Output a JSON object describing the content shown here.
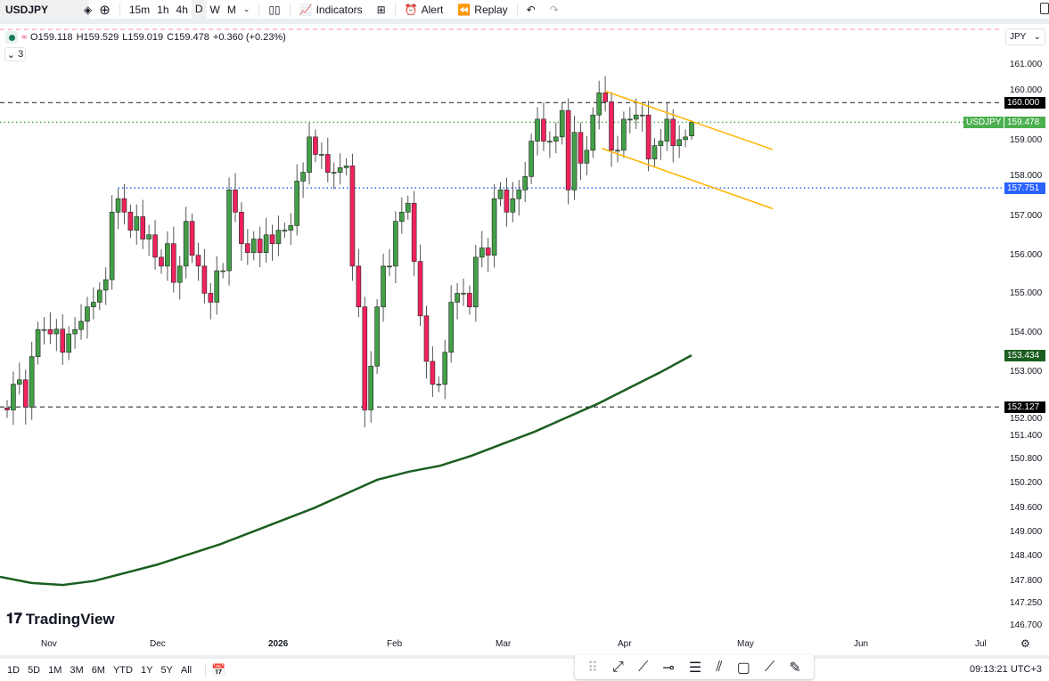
{
  "toolbar": {
    "symbol": "USDJPY",
    "intervals": [
      "15m",
      "1h",
      "4h",
      "D",
      "W",
      "M"
    ],
    "active_interval": "D",
    "indicators": "Indicators",
    "alert": "Alert",
    "replay": "Replay"
  },
  "legend": {
    "open": "O159.118",
    "high": "H159.529",
    "low": "L159.019",
    "close": "C159.478",
    "change": "+0.360 (+0.23%)",
    "collapsed_count": "3"
  },
  "currency": "JPY",
  "colors": {
    "up": "#43a047",
    "down": "#f2225c",
    "ma": "#1b5e20",
    "channel": "#ffb300",
    "support": "#2962ff",
    "last": "#4caf50"
  },
  "chart_data": {
    "type": "candlestick",
    "symbol": "USDJPY",
    "timeframe": "D",
    "scale": "log",
    "ylim": [
      146.6,
      161.5
    ],
    "x_ticks": [
      "Nov",
      "Dec",
      "2026",
      "Feb",
      "Mar",
      "Apr",
      "May",
      "Jun",
      "Jul"
    ],
    "y_ticks": [
      "161.000",
      "160.000",
      "159.000",
      "158.000",
      "157.000",
      "156.000",
      "155.000",
      "154.000",
      "153.000",
      "152.000",
      "151.400",
      "150.800",
      "150.200",
      "149.600",
      "149.000",
      "148.400",
      "147.800",
      "147.250",
      "146.700"
    ],
    "close": [
      152.05,
      152.7,
      152.81,
      152.12,
      153.4,
      154.09,
      154.09,
      153.98,
      154.1,
      153.51,
      153.98,
      154.09,
      154.3,
      154.67,
      154.79,
      155.1,
      155.37,
      157.12,
      157.47,
      157.12,
      156.65,
      157.0,
      156.42,
      156.53,
      155.95,
      155.72,
      156.3,
      155.3,
      155.72,
      156.88,
      156.0,
      155.72,
      155.02,
      154.79,
      155.6,
      155.6,
      157.7,
      157.12,
      156.3,
      156.07,
      156.42,
      156.07,
      156.53,
      156.3,
      156.65,
      156.65,
      156.77,
      157.93,
      158.16,
      159.09,
      158.63,
      158.63,
      158.16,
      158.16,
      158.28,
      158.33,
      155.72,
      154.67,
      152.05,
      153.16,
      154.67,
      155.72,
      155.72,
      156.88,
      157.12,
      157.35,
      155.84,
      154.44,
      153.28,
      152.7,
      152.7,
      153.51,
      154.79,
      155.02,
      155.02,
      154.67,
      155.95,
      156.19,
      156.0,
      157.47,
      157.7,
      157.12,
      157.47,
      157.7,
      158.05,
      158.98,
      159.56,
      158.98,
      158.98,
      159.09,
      159.79,
      157.7,
      159.21,
      158.4,
      158.74,
      159.67,
      160.26,
      160.02,
      158.74,
      158.74,
      159.56,
      159.56,
      159.67,
      159.67,
      158.51,
      158.86,
      158.98,
      159.56,
      158.86,
      159.02,
      159.09,
      159.478
    ],
    "last_candle": {
      "open": 159.118,
      "high": 159.529,
      "low": 159.019,
      "close": 159.478
    },
    "moving_average": [
      147.9,
      147.75,
      147.7,
      147.8,
      148.0,
      148.2,
      148.45,
      148.7,
      149.0,
      149.3,
      149.6,
      149.95,
      150.3,
      150.5,
      150.65,
      150.9,
      151.2,
      151.5,
      151.85,
      152.2,
      152.6,
      153.0,
      153.434
    ],
    "horizontal_lines": [
      {
        "price": 160.0,
        "label": "160.000",
        "style": "dashed",
        "color": "#131722"
      },
      {
        "price": 159.478,
        "label": "159.478",
        "series": "USDJPY",
        "style": "dotted",
        "color": "#4caf50"
      },
      {
        "price": 157.751,
        "label": "157.751",
        "style": "dotted",
        "color": "#2962ff"
      },
      {
        "price": 152.127,
        "label": "152.127",
        "style": "dashed",
        "color": "#131722"
      }
    ],
    "ma_label": "153.434",
    "channel": {
      "upper": [
        160.3,
        158.76
      ],
      "lower": [
        158.79,
        157.21
      ]
    }
  },
  "time_ranges": [
    "1D",
    "5D",
    "1M",
    "3M",
    "6M",
    "YTD",
    "1Y",
    "5Y",
    "All"
  ],
  "clock": "09:13:21 UTC+3",
  "brand": "TradingView"
}
